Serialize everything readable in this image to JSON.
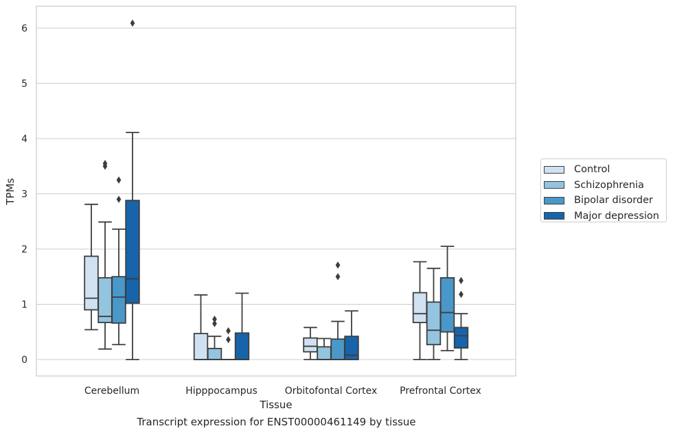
{
  "chart_data": {
    "type": "boxplot",
    "caption": "Transcript expression for ENST00000461149 by tissue",
    "xlabel": "Tissue",
    "ylabel": "TPMs",
    "ylim": [
      -0.3,
      6.4
    ],
    "yticks": [
      0,
      1,
      2,
      3,
      4,
      5,
      6
    ],
    "grid": true,
    "legend_position": "right",
    "categories": [
      "Cerebellum",
      "Hipppocampus",
      "Orbitofontal Cortex",
      "Prefrontal Cortex"
    ],
    "series": [
      {
        "name": "Control",
        "color": "#d0e1f2",
        "boxes": [
          {
            "whislo": 0.54,
            "q1": 0.9,
            "med": 1.11,
            "q3": 1.87,
            "whishi": 2.81,
            "fliers": []
          },
          {
            "whislo": 0.0,
            "q1": 0.0,
            "med": 0.0,
            "q3": 0.47,
            "whishi": 1.17,
            "fliers": []
          },
          {
            "whislo": 0.0,
            "q1": 0.14,
            "med": 0.24,
            "q3": 0.39,
            "whishi": 0.58,
            "fliers": []
          },
          {
            "whislo": 0.0,
            "q1": 0.67,
            "med": 0.83,
            "q3": 1.21,
            "whishi": 1.77,
            "fliers": []
          }
        ]
      },
      {
        "name": "Schizophrenia",
        "color": "#94c4df",
        "boxes": [
          {
            "whislo": 0.19,
            "q1": 0.67,
            "med": 0.78,
            "q3": 1.48,
            "whishi": 2.49,
            "fliers": [
              3.5,
              3.55
            ]
          },
          {
            "whislo": 0.0,
            "q1": 0.0,
            "med": 0.0,
            "q3": 0.2,
            "whishi": 0.42,
            "fliers": [
              0.65,
              0.73
            ]
          },
          {
            "whislo": 0.0,
            "q1": 0.0,
            "med": 0.0,
            "q3": 0.23,
            "whishi": 0.38,
            "fliers": []
          },
          {
            "whislo": 0.0,
            "q1": 0.27,
            "med": 0.53,
            "q3": 1.04,
            "whishi": 1.65,
            "fliers": []
          }
        ]
      },
      {
        "name": "Bipolar disorder",
        "color": "#4a98c9",
        "boxes": [
          {
            "whislo": 0.27,
            "q1": 0.66,
            "med": 1.13,
            "q3": 1.5,
            "whishi": 2.36,
            "fliers": [
              2.9,
              3.25
            ]
          },
          {
            "whislo": 0.0,
            "q1": 0.0,
            "med": 0.0,
            "q3": 0.0,
            "whishi": 0.0,
            "fliers": [
              0.36,
              0.52
            ]
          },
          {
            "whislo": 0.0,
            "q1": 0.0,
            "med": 0.0,
            "q3": 0.37,
            "whishi": 0.69,
            "fliers": [
              1.5,
              1.71
            ]
          },
          {
            "whislo": 0.16,
            "q1": 0.5,
            "med": 0.85,
            "q3": 1.48,
            "whishi": 2.05,
            "fliers": []
          }
        ]
      },
      {
        "name": "Major depression",
        "color": "#1764ab",
        "boxes": [
          {
            "whislo": 0.0,
            "q1": 1.02,
            "med": 1.46,
            "q3": 2.88,
            "whishi": 4.11,
            "fliers": [
              6.09
            ]
          },
          {
            "whislo": 0.0,
            "q1": 0.0,
            "med": 0.0,
            "q3": 0.48,
            "whishi": 1.2,
            "fliers": []
          },
          {
            "whislo": 0.0,
            "q1": 0.0,
            "med": 0.08,
            "q3": 0.42,
            "whishi": 0.88,
            "fliers": []
          },
          {
            "whislo": 0.0,
            "q1": 0.21,
            "med": 0.43,
            "q3": 0.58,
            "whishi": 0.83,
            "fliers": [
              1.18,
              1.43
            ]
          }
        ]
      }
    ]
  }
}
